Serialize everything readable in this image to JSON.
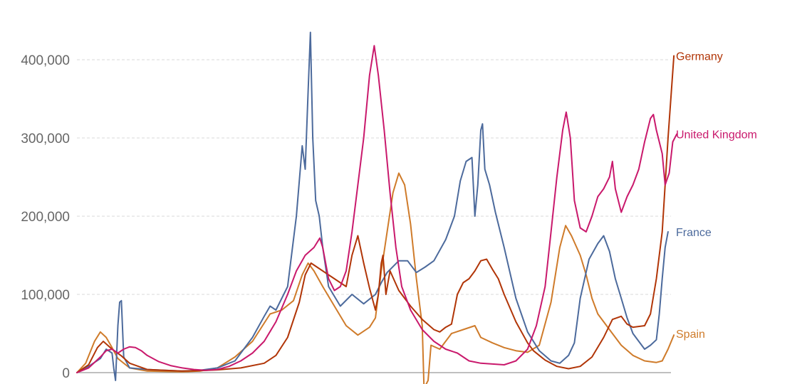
{
  "chart_data": {
    "type": "line",
    "title": "",
    "xlabel": "",
    "ylabel": "",
    "ylim": [
      0,
      420000
    ],
    "xlim": [
      0,
      100
    ],
    "y_ticks": [
      {
        "value": 0,
        "label": "0"
      },
      {
        "value": 100000,
        "label": "100,000"
      },
      {
        "value": 200000,
        "label": "200,000"
      },
      {
        "value": 300000,
        "label": "300,000"
      },
      {
        "value": 400000,
        "label": "400,000"
      }
    ],
    "grid": true,
    "legend": "inline-right",
    "series": [
      {
        "name": "France",
        "color": "#4c6a9c",
        "points": [
          [
            0,
            0
          ],
          [
            2,
            8000
          ],
          [
            4,
            18000
          ],
          [
            5,
            30000
          ],
          [
            6,
            25000
          ],
          [
            6.3,
            5000
          ],
          [
            6.6,
            -10000
          ],
          [
            7,
            60000
          ],
          [
            7.3,
            90000
          ],
          [
            7.6,
            92000
          ],
          [
            8,
            20000
          ],
          [
            9,
            6000
          ],
          [
            12,
            4000
          ],
          [
            15,
            3000
          ],
          [
            18,
            2000
          ],
          [
            21,
            3000
          ],
          [
            24,
            6000
          ],
          [
            27,
            15000
          ],
          [
            30,
            45000
          ],
          [
            32,
            72000
          ],
          [
            33,
            85000
          ],
          [
            34,
            80000
          ],
          [
            36,
            110000
          ],
          [
            37.5,
            200000
          ],
          [
            38.5,
            290000
          ],
          [
            39,
            260000
          ],
          [
            39.5,
            360000
          ],
          [
            39.9,
            435000
          ],
          [
            40.3,
            300000
          ],
          [
            40.8,
            220000
          ],
          [
            41.4,
            200000
          ],
          [
            42,
            160000
          ],
          [
            43,
            110000
          ],
          [
            45,
            85000
          ],
          [
            47,
            100000
          ],
          [
            49,
            88000
          ],
          [
            51,
            100000
          ],
          [
            52,
            115000
          ],
          [
            53,
            128000
          ],
          [
            55,
            143000
          ],
          [
            56.5,
            143000
          ],
          [
            58,
            128000
          ],
          [
            59.5,
            135000
          ],
          [
            61,
            143000
          ],
          [
            63,
            170000
          ],
          [
            64.5,
            200000
          ],
          [
            65.5,
            245000
          ],
          [
            66.5,
            270000
          ],
          [
            67.5,
            275000
          ],
          [
            68,
            200000
          ],
          [
            68.5,
            240000
          ],
          [
            69,
            310000
          ],
          [
            69.3,
            318000
          ],
          [
            69.7,
            260000
          ],
          [
            70.5,
            240000
          ],
          [
            71.5,
            205000
          ],
          [
            73,
            160000
          ],
          [
            75,
            95000
          ],
          [
            77,
            52000
          ],
          [
            79,
            28000
          ],
          [
            81,
            15000
          ],
          [
            82.5,
            12000
          ],
          [
            84,
            22000
          ],
          [
            85,
            38000
          ],
          [
            86,
            95000
          ],
          [
            87.5,
            145000
          ],
          [
            89,
            165000
          ],
          [
            90,
            175000
          ],
          [
            91,
            155000
          ],
          [
            92,
            120000
          ],
          [
            93,
            95000
          ],
          [
            94,
            70000
          ],
          [
            95,
            50000
          ],
          [
            96,
            40000
          ],
          [
            97,
            30000
          ],
          [
            98,
            35000
          ],
          [
            99,
            42000
          ],
          [
            99.5,
            75000
          ],
          [
            100,
            120000
          ],
          [
            100.5,
            160000
          ],
          [
            101,
            180000
          ]
        ]
      },
      {
        "name": "Germany",
        "color": "#b13507",
        "points": [
          [
            0,
            0
          ],
          [
            2,
            10000
          ],
          [
            3.5,
            32000
          ],
          [
            4.5,
            40000
          ],
          [
            6,
            30000
          ],
          [
            7.5,
            22000
          ],
          [
            9,
            12000
          ],
          [
            12,
            4000
          ],
          [
            15,
            3000
          ],
          [
            18,
            2000
          ],
          [
            21,
            2500
          ],
          [
            24,
            3500
          ],
          [
            28,
            6000
          ],
          [
            32,
            12000
          ],
          [
            34,
            22000
          ],
          [
            36,
            45000
          ],
          [
            38,
            90000
          ],
          [
            39,
            125000
          ],
          [
            40,
            140000
          ],
          [
            42,
            130000
          ],
          [
            44,
            120000
          ],
          [
            46,
            110000
          ],
          [
            47,
            150000
          ],
          [
            48,
            175000
          ],
          [
            49,
            140000
          ],
          [
            50,
            108000
          ],
          [
            51,
            80000
          ],
          [
            51.5,
            100000
          ],
          [
            52,
            140000
          ],
          [
            52.3,
            150000
          ],
          [
            52.8,
            100000
          ],
          [
            53.5,
            130000
          ],
          [
            55,
            105000
          ],
          [
            57,
            85000
          ],
          [
            59,
            68000
          ],
          [
            61,
            55000
          ],
          [
            62,
            52000
          ],
          [
            63,
            58000
          ],
          [
            64,
            62000
          ],
          [
            65,
            100000
          ],
          [
            66,
            115000
          ],
          [
            67,
            120000
          ],
          [
            68,
            130000
          ],
          [
            69,
            143000
          ],
          [
            70,
            145000
          ],
          [
            71,
            132000
          ],
          [
            72,
            120000
          ],
          [
            73,
            100000
          ],
          [
            75,
            65000
          ],
          [
            77,
            38000
          ],
          [
            78,
            28000
          ],
          [
            80,
            16000
          ],
          [
            82,
            8000
          ],
          [
            84,
            5000
          ],
          [
            86,
            8000
          ],
          [
            88,
            20000
          ],
          [
            90,
            45000
          ],
          [
            91.5,
            68000
          ],
          [
            93,
            72000
          ],
          [
            94,
            62000
          ],
          [
            95,
            58000
          ],
          [
            97,
            60000
          ],
          [
            98,
            75000
          ],
          [
            99,
            120000
          ],
          [
            100,
            180000
          ],
          [
            101,
            300000
          ],
          [
            102,
            405000
          ]
        ]
      },
      {
        "name": "United Kingdom",
        "color": "#c9196c",
        "points": [
          [
            0,
            0
          ],
          [
            2,
            6000
          ],
          [
            4,
            20000
          ],
          [
            5,
            28000
          ],
          [
            6,
            30000
          ],
          [
            7,
            25000
          ],
          [
            8,
            30000
          ],
          [
            9,
            33000
          ],
          [
            10,
            32000
          ],
          [
            11,
            28000
          ],
          [
            12,
            22000
          ],
          [
            14,
            14000
          ],
          [
            16,
            9000
          ],
          [
            18,
            6000
          ],
          [
            20,
            4000
          ],
          [
            22,
            3000
          ],
          [
            24,
            4000
          ],
          [
            26,
            8000
          ],
          [
            28,
            15000
          ],
          [
            30,
            25000
          ],
          [
            32,
            40000
          ],
          [
            34,
            65000
          ],
          [
            36,
            100000
          ],
          [
            37.5,
            130000
          ],
          [
            39,
            150000
          ],
          [
            40.5,
            160000
          ],
          [
            41.5,
            172000
          ],
          [
            42,
            160000
          ],
          [
            43,
            120000
          ],
          [
            44,
            105000
          ],
          [
            45,
            110000
          ],
          [
            46,
            130000
          ],
          [
            47,
            180000
          ],
          [
            48,
            240000
          ],
          [
            49,
            300000
          ],
          [
            50,
            380000
          ],
          [
            50.8,
            418000
          ],
          [
            51.5,
            380000
          ],
          [
            52.5,
            310000
          ],
          [
            53.5,
            230000
          ],
          [
            54.5,
            160000
          ],
          [
            55.5,
            110000
          ],
          [
            57,
            80000
          ],
          [
            59,
            55000
          ],
          [
            61,
            40000
          ],
          [
            63,
            30000
          ],
          [
            65,
            25000
          ],
          [
            67,
            15000
          ],
          [
            69,
            12000
          ],
          [
            71,
            11000
          ],
          [
            73,
            10000
          ],
          [
            75,
            15000
          ],
          [
            77,
            30000
          ],
          [
            78.5,
            60000
          ],
          [
            80,
            110000
          ],
          [
            81,
            180000
          ],
          [
            82,
            250000
          ],
          [
            83,
            310000
          ],
          [
            83.6,
            333000
          ],
          [
            84.3,
            300000
          ],
          [
            85,
            220000
          ],
          [
            86,
            185000
          ],
          [
            87,
            180000
          ],
          [
            88,
            200000
          ],
          [
            89,
            225000
          ],
          [
            90,
            235000
          ],
          [
            91,
            250000
          ],
          [
            91.5,
            270000
          ],
          [
            92,
            235000
          ],
          [
            93,
            205000
          ],
          [
            94,
            225000
          ],
          [
            95,
            240000
          ],
          [
            96,
            260000
          ],
          [
            97,
            295000
          ],
          [
            98,
            325000
          ],
          [
            98.5,
            330000
          ],
          [
            99,
            310000
          ],
          [
            100,
            280000
          ],
          [
            100.5,
            240000
          ],
          [
            101.2,
            255000
          ],
          [
            101.8,
            295000
          ],
          [
            102.5,
            305000
          ]
        ]
      },
      {
        "name": "Spain",
        "color": "#cf7b2a",
        "points": [
          [
            0,
            0
          ],
          [
            1.5,
            12000
          ],
          [
            3,
            40000
          ],
          [
            4,
            52000
          ],
          [
            5,
            45000
          ],
          [
            6,
            32000
          ],
          [
            7,
            18000
          ],
          [
            9,
            6000
          ],
          [
            12,
            2000
          ],
          [
            15,
            1500
          ],
          [
            18,
            1000
          ],
          [
            21,
            2000
          ],
          [
            24,
            6000
          ],
          [
            27,
            20000
          ],
          [
            30,
            40000
          ],
          [
            33,
            75000
          ],
          [
            35,
            80000
          ],
          [
            37,
            92000
          ],
          [
            38.5,
            125000
          ],
          [
            39.5,
            140000
          ],
          [
            40.5,
            130000
          ],
          [
            42,
            110000
          ],
          [
            44,
            85000
          ],
          [
            46,
            60000
          ],
          [
            48,
            48000
          ],
          [
            50,
            58000
          ],
          [
            51,
            70000
          ],
          [
            52,
            130000
          ],
          [
            53,
            180000
          ],
          [
            54,
            230000
          ],
          [
            55,
            255000
          ],
          [
            56,
            240000
          ],
          [
            57,
            190000
          ],
          [
            58,
            120000
          ],
          [
            59,
            60000
          ],
          [
            59.3,
            -20000
          ],
          [
            60,
            -10000
          ],
          [
            60.5,
            35000
          ],
          [
            62,
            30000
          ],
          [
            64,
            50000
          ],
          [
            66,
            55000
          ],
          [
            68,
            60000
          ],
          [
            69,
            45000
          ],
          [
            71,
            38000
          ],
          [
            73,
            32000
          ],
          [
            75,
            28000
          ],
          [
            77,
            26000
          ],
          [
            79,
            35000
          ],
          [
            81,
            90000
          ],
          [
            82.5,
            160000
          ],
          [
            83.5,
            188000
          ],
          [
            84.5,
            175000
          ],
          [
            86,
            150000
          ],
          [
            87,
            125000
          ],
          [
            88,
            95000
          ],
          [
            89,
            75000
          ],
          [
            90,
            65000
          ],
          [
            91.5,
            50000
          ],
          [
            93,
            35000
          ],
          [
            95,
            22000
          ],
          [
            97,
            15000
          ],
          [
            99,
            13000
          ],
          [
            100,
            15000
          ],
          [
            101,
            30000
          ],
          [
            102,
            48000
          ]
        ]
      }
    ]
  }
}
